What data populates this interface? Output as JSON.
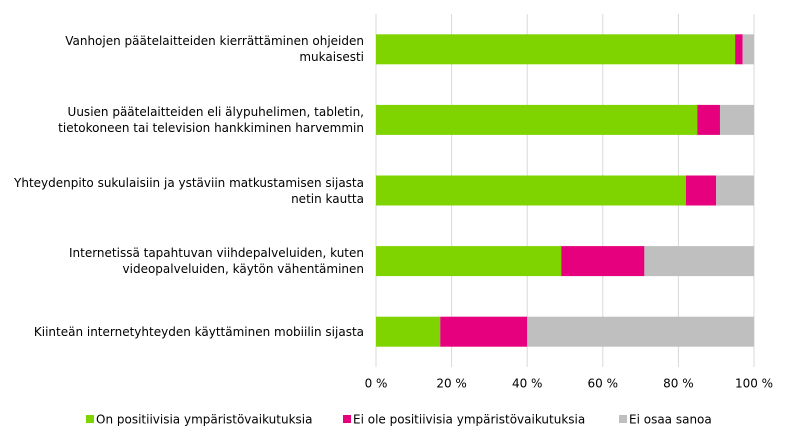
{
  "chart_data": {
    "type": "stacked-bar-horizontal",
    "categories": [
      "Vanhojen päätelaitteiden kierrättäminen ohjeiden\nmukaisesti",
      "Uusien päätelaitteiden eli älypuhelimen, tabletin,\ntietokoneen tai television hankkiminen harvemmin",
      "Yhteydenpito sukulaisiin ja ystäviin matkustamisen sijasta\nnetin kautta",
      "Internetissä tapahtuvan viihdepalveluiden, kuten\nvideopalveluiden, käytön vähentäminen",
      "Kiinteän internetyhteyden käyttäminen mobiilin sijasta"
    ],
    "series": [
      {
        "name": "On positiivisia ympäristövaikutuksia",
        "color": "#7fd400",
        "values": [
          95,
          85,
          82,
          49,
          17
        ]
      },
      {
        "name": "Ei ole positiivisia ympäristövaikutuksia",
        "color": "#e6007e",
        "values": [
          2,
          6,
          8,
          22,
          23
        ]
      },
      {
        "name": "Ei osaa sanoa",
        "color": "#bfbfbf",
        "values": [
          3,
          9,
          10,
          29,
          60
        ]
      }
    ],
    "xlim": [
      0,
      100
    ],
    "xticks": [
      {
        "value": 0,
        "label": "0 %"
      },
      {
        "value": 20,
        "label": "20 %"
      },
      {
        "value": 40,
        "label": "40 %"
      },
      {
        "value": 60,
        "label": "60 %"
      },
      {
        "value": 80,
        "label": "80 %"
      },
      {
        "value": 100,
        "label": "100 %"
      }
    ],
    "grid": true,
    "legend": "bottom"
  }
}
